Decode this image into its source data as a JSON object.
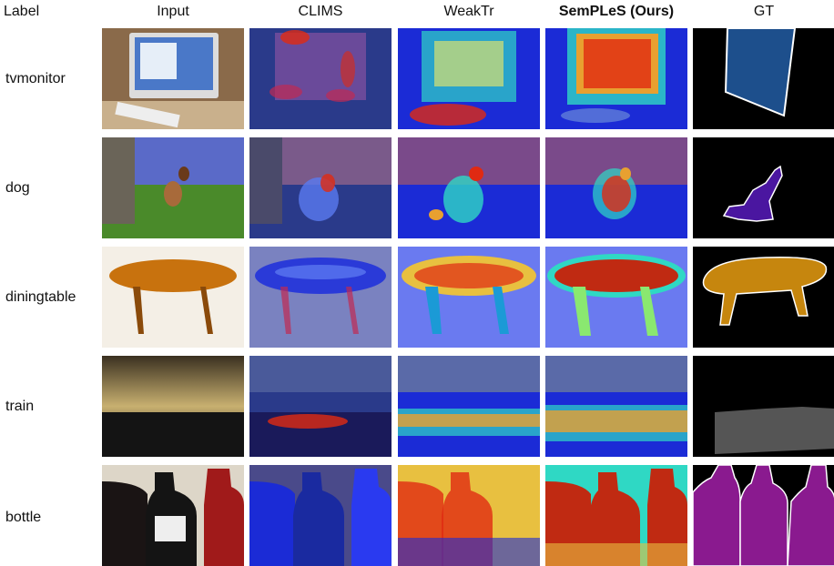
{
  "header": {
    "label": "Label",
    "columns": [
      "Input",
      "CLIMS",
      "WeakTr",
      "SemPLeS (Ours)",
      "GT"
    ]
  },
  "rows": [
    {
      "label": "tvmonitor"
    },
    {
      "label": "dog"
    },
    {
      "label": "diningtable"
    },
    {
      "label": "train"
    },
    {
      "label": "bottle"
    }
  ],
  "colors": {
    "heat_low": "#1b2bd6",
    "heat_mid": "#2fd8c4",
    "heat_high": "#e02a12",
    "gt_background": "#000000",
    "gt_tvmonitor": "#1d4f8c",
    "gt_dog": "#4a16a0",
    "gt_diningtable": "#c6860e",
    "gt_train": "#555555",
    "gt_bottle": "#8a1a8f"
  }
}
